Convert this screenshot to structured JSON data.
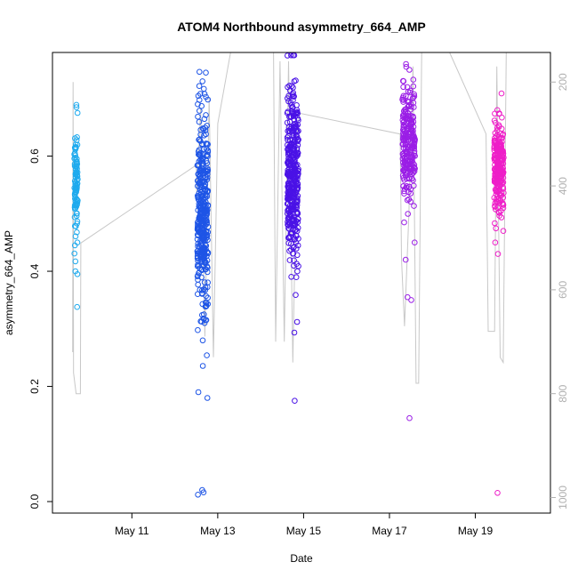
{
  "chart_data": {
    "type": "scatter",
    "title": "ATOM4 Northbound asymmetry_664_AMP",
    "xlabel": "Date",
    "ylabel": "asymmetry_664_AMP",
    "x_axis": {
      "unit": "days since May 10",
      "range": [
        -0.85,
        10.75
      ],
      "ticks": [
        {
          "value": 1,
          "label": "May 11"
        },
        {
          "value": 3,
          "label": "May 13"
        },
        {
          "value": 5,
          "label": "May 15"
        },
        {
          "value": 7,
          "label": "May 17"
        },
        {
          "value": 9,
          "label": "May 19"
        }
      ]
    },
    "y_axis": {
      "range": [
        -0.02,
        0.78
      ],
      "ticks": [
        {
          "value": 0.0,
          "label": "0.0"
        },
        {
          "value": 0.2,
          "label": "0.2"
        },
        {
          "value": 0.4,
          "label": "0.4"
        },
        {
          "value": 0.6,
          "label": "0.6"
        }
      ]
    },
    "y2_axis": {
      "range": [
        1030,
        143
      ],
      "color": "#b0b0b0",
      "ticks": [
        {
          "value": 200,
          "label": "200"
        },
        {
          "value": 400,
          "label": "400"
        },
        {
          "value": 600,
          "label": "600"
        },
        {
          "value": 800,
          "label": "800"
        },
        {
          "value": 1000,
          "label": "1000"
        }
      ]
    },
    "grid": false,
    "series": [
      {
        "color": "#1eaaee",
        "x_center": -0.3,
        "x_jitter": 0.08,
        "count": 90,
        "y_mean": 0.555,
        "y_sd": 0.045,
        "outliers": [
          0.338,
          0.395,
          0.4,
          0.445,
          0.45,
          0.685,
          0.675
        ]
      },
      {
        "color": "#1e55e6",
        "x_center": 2.65,
        "x_jitter": 0.25,
        "count": 380,
        "y_mean": 0.5,
        "y_sd": 0.085,
        "outliers": [
          0.012,
          0.016,
          0.02,
          0.18,
          0.19,
          0.28,
          0.31,
          0.745,
          0.73
        ]
      },
      {
        "color": "#4a12e6",
        "x_center": 4.75,
        "x_jitter": 0.26,
        "count": 380,
        "y_mean": 0.565,
        "y_sd": 0.075,
        "outliers": [
          0.175,
          0.312,
          0.4,
          0.72,
          0.71
        ]
      },
      {
        "color": "#9a1ee6",
        "x_center": 7.45,
        "x_jitter": 0.3,
        "count": 240,
        "y_mean": 0.62,
        "y_sd": 0.045,
        "outliers": [
          0.145,
          0.35,
          0.355,
          0.42,
          0.45,
          0.755,
          0.72
        ]
      },
      {
        "color": "#ee1ec8",
        "x_center": 9.55,
        "x_jitter": 0.22,
        "count": 250,
        "y_mean": 0.585,
        "y_sd": 0.04,
        "outliers": [
          0.015,
          0.43,
          0.45,
          0.47,
          0.68
        ]
      }
    ],
    "secondary_line": {
      "color": "#c8c8c8",
      "axis": "y2",
      "points": [
        [
          -0.38,
          720
        ],
        [
          -0.37,
          200
        ],
        [
          -0.36,
          760
        ],
        [
          -0.3,
          800
        ],
        [
          -0.2,
          800
        ],
        [
          -0.19,
          510
        ],
        [
          2.5,
          360
        ],
        [
          2.51,
          420
        ],
        [
          2.6,
          250
        ],
        [
          2.7,
          690
        ],
        [
          2.8,
          230
        ],
        [
          2.9,
          730
        ],
        [
          3.0,
          280
        ],
        [
          3.3,
          143
        ],
        [
          4.3,
          143
        ],
        [
          4.35,
          700
        ],
        [
          4.45,
          160
        ],
        [
          4.55,
          700
        ],
        [
          4.65,
          160
        ],
        [
          4.75,
          740
        ],
        [
          4.85,
          300
        ],
        [
          4.9,
          260
        ],
        [
          7.25,
          300
        ],
        [
          7.28,
          540
        ],
        [
          7.35,
          670
        ],
        [
          7.45,
          460
        ],
        [
          7.55,
          170
        ],
        [
          7.62,
          780
        ],
        [
          7.68,
          780
        ],
        [
          7.75,
          143
        ],
        [
          8.4,
          143
        ],
        [
          9.25,
          300
        ],
        [
          9.3,
          680
        ],
        [
          9.45,
          680
        ],
        [
          9.5,
          170
        ],
        [
          9.58,
          730
        ],
        [
          9.65,
          740
        ],
        [
          9.72,
          143
        ]
      ]
    }
  }
}
